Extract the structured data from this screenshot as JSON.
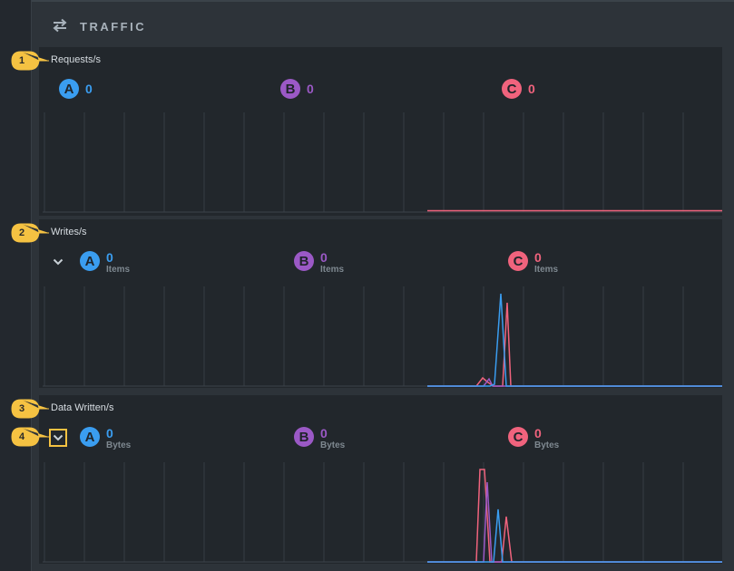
{
  "panel": {
    "title": "TRAFFIC",
    "icon": "swap-arrows-icon"
  },
  "colors": {
    "a": "#3a9df0",
    "b": "#9b59c6",
    "c": "#f0637d",
    "callout": "#f5c242"
  },
  "sections": [
    {
      "title": "Requests/s",
      "callout": "1",
      "stats": [
        {
          "badge": "A",
          "value": "0",
          "unit": ""
        },
        {
          "badge": "B",
          "value": "0",
          "unit": ""
        },
        {
          "badge": "C",
          "value": "0",
          "unit": ""
        }
      ]
    },
    {
      "title": "Writes/s",
      "callout": "2",
      "stats": [
        {
          "badge": "A",
          "value": "0",
          "unit": "Items"
        },
        {
          "badge": "B",
          "value": "0",
          "unit": "Items"
        },
        {
          "badge": "C",
          "value": "0",
          "unit": "Items"
        }
      ]
    },
    {
      "title": "Data Written/s",
      "callout": "3",
      "stats": [
        {
          "badge": "A",
          "value": "0",
          "unit": "Bytes"
        },
        {
          "badge": "B",
          "value": "0",
          "unit": "Bytes"
        },
        {
          "badge": "C",
          "value": "0",
          "unit": "Bytes"
        }
      ]
    }
  ],
  "chevron_callout": "4"
}
